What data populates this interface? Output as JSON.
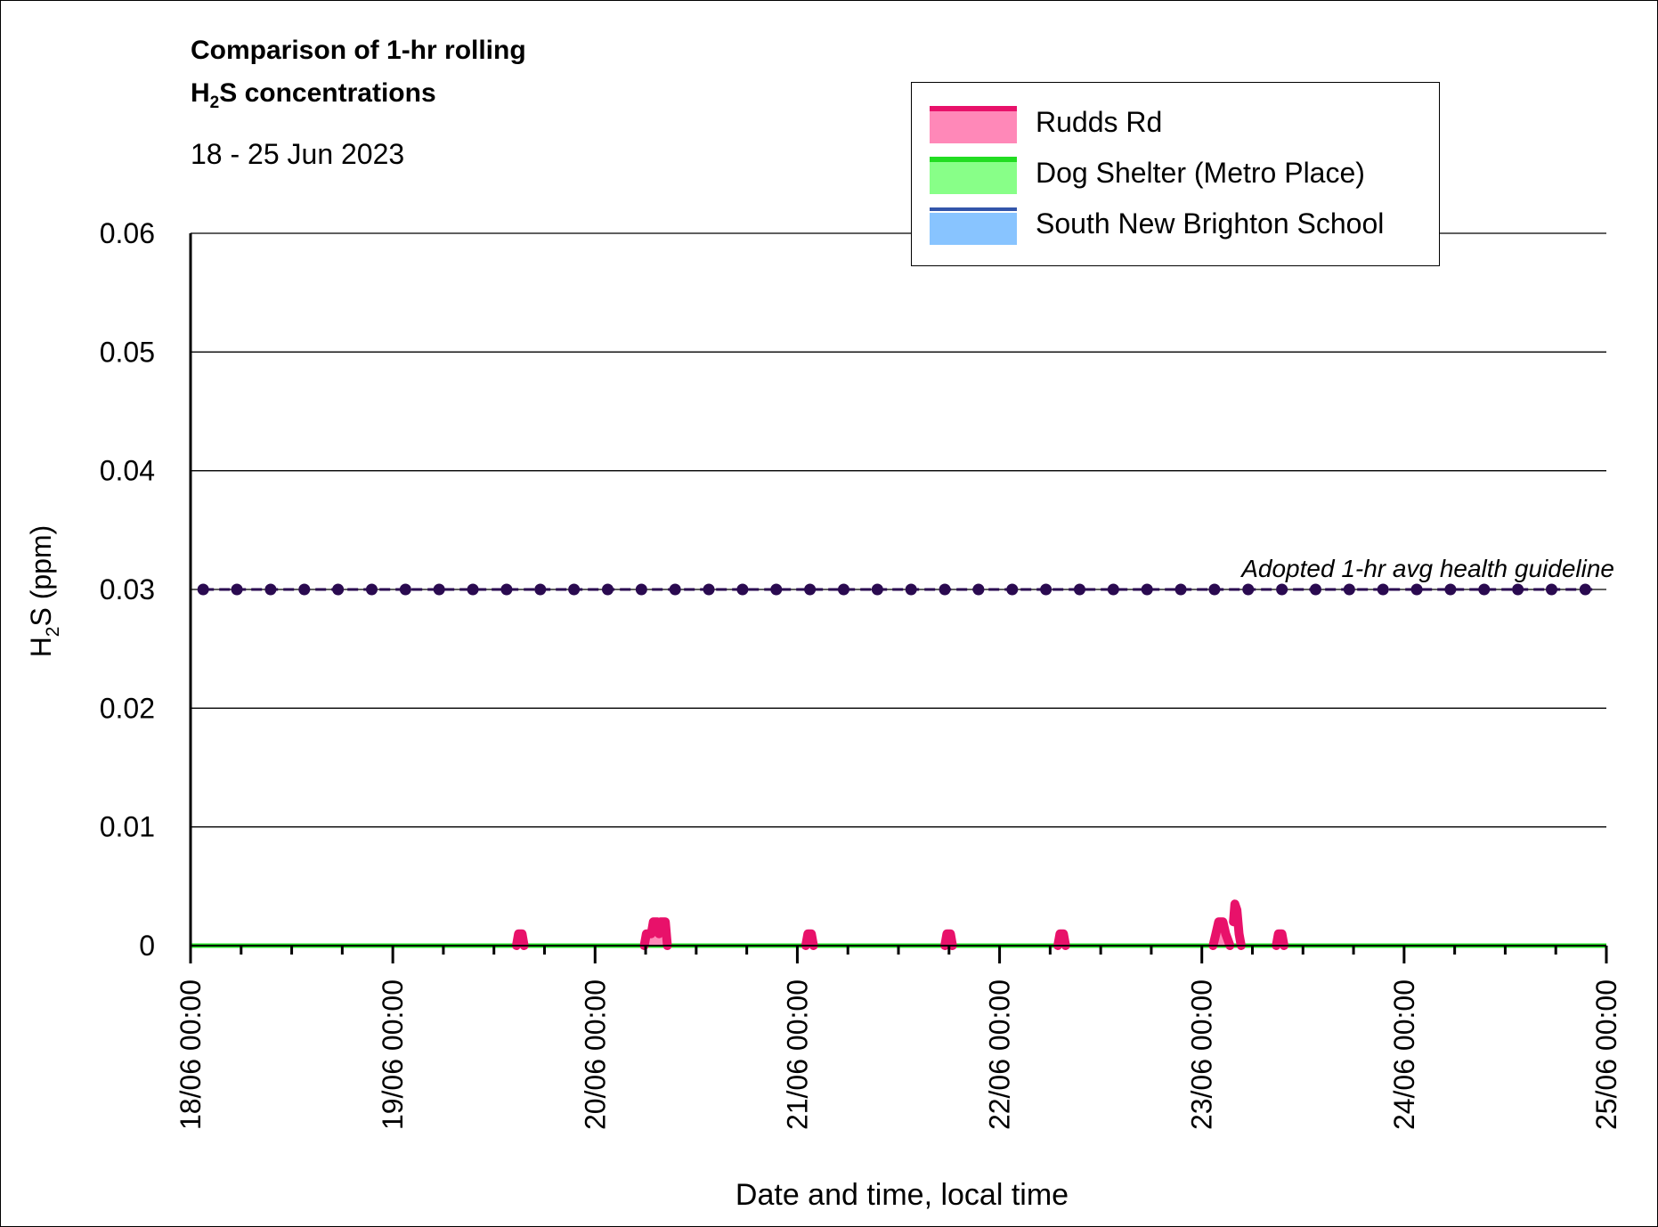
{
  "chart_data": {
    "type": "area",
    "title_line1": "Comparison of 1-hr rolling",
    "title_line2_prefix": "H",
    "title_line2_sub": "2",
    "title_line2_suffix": "S concentrations",
    "subtitle": "18 - 25 Jun 2023",
    "ylabel_prefix": "H",
    "ylabel_sub": "2",
    "ylabel_suffix": "S (ppm)",
    "xlabel": "Date and time, local time",
    "ylim": [
      0,
      0.06
    ],
    "yticks": [
      0,
      0.01,
      0.02,
      0.03,
      0.04,
      0.05,
      0.06
    ],
    "ytick_labels": [
      "0",
      "0.01",
      "0.02",
      "0.03",
      "0.04",
      "0.05",
      "0.06"
    ],
    "xlim_days": [
      0,
      7
    ],
    "xtick_labels": [
      "18/06 00:00",
      "19/06 00:00",
      "20/06 00:00",
      "21/06 00:00",
      "22/06 00:00",
      "23/06 00:00",
      "24/06 00:00",
      "25/06 00:00"
    ],
    "grid": "horizontal",
    "legend_position": "top-right",
    "series": [
      {
        "name": "Rudds Rd",
        "line_color": "#e8116a",
        "fill_color": "#ff88b8",
        "points": [
          [
            "19/06 14:40",
            0
          ],
          [
            "19/06 14:55",
            0.001
          ],
          [
            "19/06 15:20",
            0.001
          ],
          [
            "19/06 15:35",
            0
          ],
          [
            "20/06 05:50",
            0
          ],
          [
            "20/06 06:05",
            0.001
          ],
          [
            "20/06 06:40",
            0.001
          ],
          [
            "20/06 06:55",
            0.002
          ],
          [
            "20/06 07:25",
            0.002
          ],
          [
            "20/06 07:35",
            0.001
          ],
          [
            "20/06 07:45",
            0.002
          ],
          [
            "20/06 08:20",
            0.002
          ],
          [
            "20/06 08:35",
            0
          ],
          [
            "21/06 01:00",
            0
          ],
          [
            "21/06 01:15",
            0.001
          ],
          [
            "21/06 01:40",
            0.001
          ],
          [
            "21/06 01:55",
            0
          ],
          [
            "21/06 17:30",
            0
          ],
          [
            "21/06 17:45",
            0.001
          ],
          [
            "21/06 18:10",
            0.001
          ],
          [
            "21/06 18:25",
            0
          ],
          [
            "22/06 06:55",
            0
          ],
          [
            "22/06 07:10",
            0.001
          ],
          [
            "22/06 07:35",
            0.001
          ],
          [
            "22/06 07:50",
            0
          ],
          [
            "23/06 01:20",
            0
          ],
          [
            "23/06 01:40",
            0.001
          ],
          [
            "23/06 02:00",
            0.002
          ],
          [
            "23/06 02:30",
            0.002
          ],
          [
            "23/06 02:50",
            0.001
          ],
          [
            "23/06 03:20",
            0
          ],
          [
            "23/06 03:45",
            0.002
          ],
          [
            "23/06 03:55",
            0.0035
          ],
          [
            "23/06 04:10",
            0.003
          ],
          [
            "23/06 04:25",
            0.001
          ],
          [
            "23/06 04:40",
            0
          ],
          [
            "23/06 08:50",
            0
          ],
          [
            "23/06 09:05",
            0.001
          ],
          [
            "23/06 09:30",
            0.001
          ],
          [
            "23/06 09:45",
            0
          ]
        ]
      },
      {
        "name": "Dog Shelter (Metro Place)",
        "line_color": "#22dd22",
        "fill_color": "#88ff88",
        "points": [
          [
            "18/06 00:00",
            0
          ],
          [
            "25/06 00:00",
            0
          ]
        ]
      },
      {
        "name": "South New Brighton School",
        "line_color": "#3355aa",
        "fill_color": "#88c4ff",
        "points": [
          [
            "18/06 00:00",
            0
          ],
          [
            "25/06 00:00",
            0
          ]
        ]
      }
    ],
    "guideline": {
      "label": "Adopted 1-hr avg health guideline",
      "value": 0.03,
      "color": "#2a0a50"
    }
  }
}
